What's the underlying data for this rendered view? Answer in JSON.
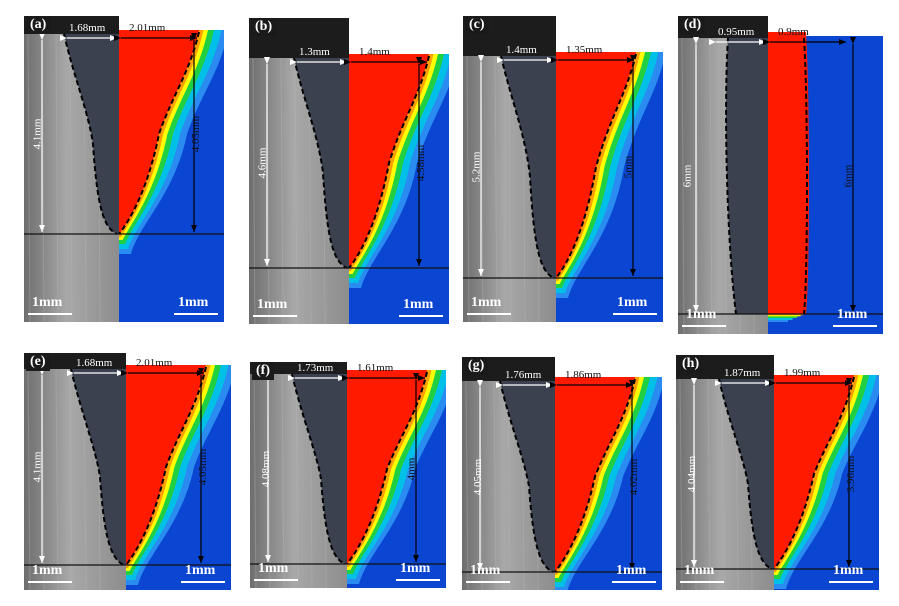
{
  "panels": [
    {
      "label": "(a)",
      "top_w1": "1.68mm",
      "top_w2": "2.01mm",
      "depth_left": "4.1mm",
      "depth_right": "4.05mm",
      "scale_left": "1mm",
      "scale_right": "1mm",
      "spread": "normal"
    },
    {
      "label": "(b)",
      "top_w1": "1.3mm",
      "top_w2": "1.4mm",
      "depth_left": "4.6mm",
      "depth_right": "4.58mm",
      "scale_left": "1mm",
      "scale_right": "1mm",
      "spread": "normal"
    },
    {
      "label": "(c)",
      "top_w1": "1.4mm",
      "top_w2": "1.35mm",
      "depth_left": "5.2mm",
      "depth_right": "5mm",
      "scale_left": "1mm",
      "scale_right": "1mm",
      "spread": "normal"
    },
    {
      "label": "(d)",
      "top_w1": "0.95mm",
      "top_w2": "0.9mm",
      "depth_left": "6mm",
      "depth_right": "6mm",
      "scale_left": "1mm",
      "scale_right": "1mm",
      "spread": "full"
    },
    {
      "label": "(e)",
      "top_w1": "1.68mm",
      "top_w2": "2.01mm",
      "depth_left": "4.1mm",
      "depth_right": "4.05mm",
      "scale_left": "1mm",
      "scale_right": "1mm",
      "spread": "normal"
    },
    {
      "label": "(f)",
      "top_w1": "1.73mm",
      "top_w2": "1.61mm",
      "depth_left": "4.08mm",
      "depth_right": "4mm",
      "scale_left": "1mm",
      "scale_right": "1mm",
      "spread": "normal"
    },
    {
      "label": "(g)",
      "top_w1": "1.76mm",
      "top_w2": "1.86mm",
      "depth_left": "4.05mm",
      "depth_right": "4.02mm",
      "scale_left": "1mm",
      "scale_right": "1mm",
      "spread": "normal"
    },
    {
      "label": "(h)",
      "top_w1": "1.87mm",
      "top_w2": "1.99mm",
      "depth_left": "4.04mm",
      "depth_right": "3.96mm",
      "scale_left": "1mm",
      "scale_right": "1mm",
      "spread": "normal"
    }
  ],
  "colors": {
    "metal_light": "#a8a8a8",
    "metal_dark": "#6e6e6e",
    "fusion_zone": "#3c4150",
    "sim_red": "#ff1a00",
    "sim_orange": "#ffa000",
    "sim_yellow": "#ffff00",
    "sim_green": "#20d040",
    "sim_cyan": "#00c0e8",
    "sim_lightblue": "#2a8cf0",
    "sim_blue": "#0a46d2",
    "dark_top": "#1c1c1c"
  }
}
